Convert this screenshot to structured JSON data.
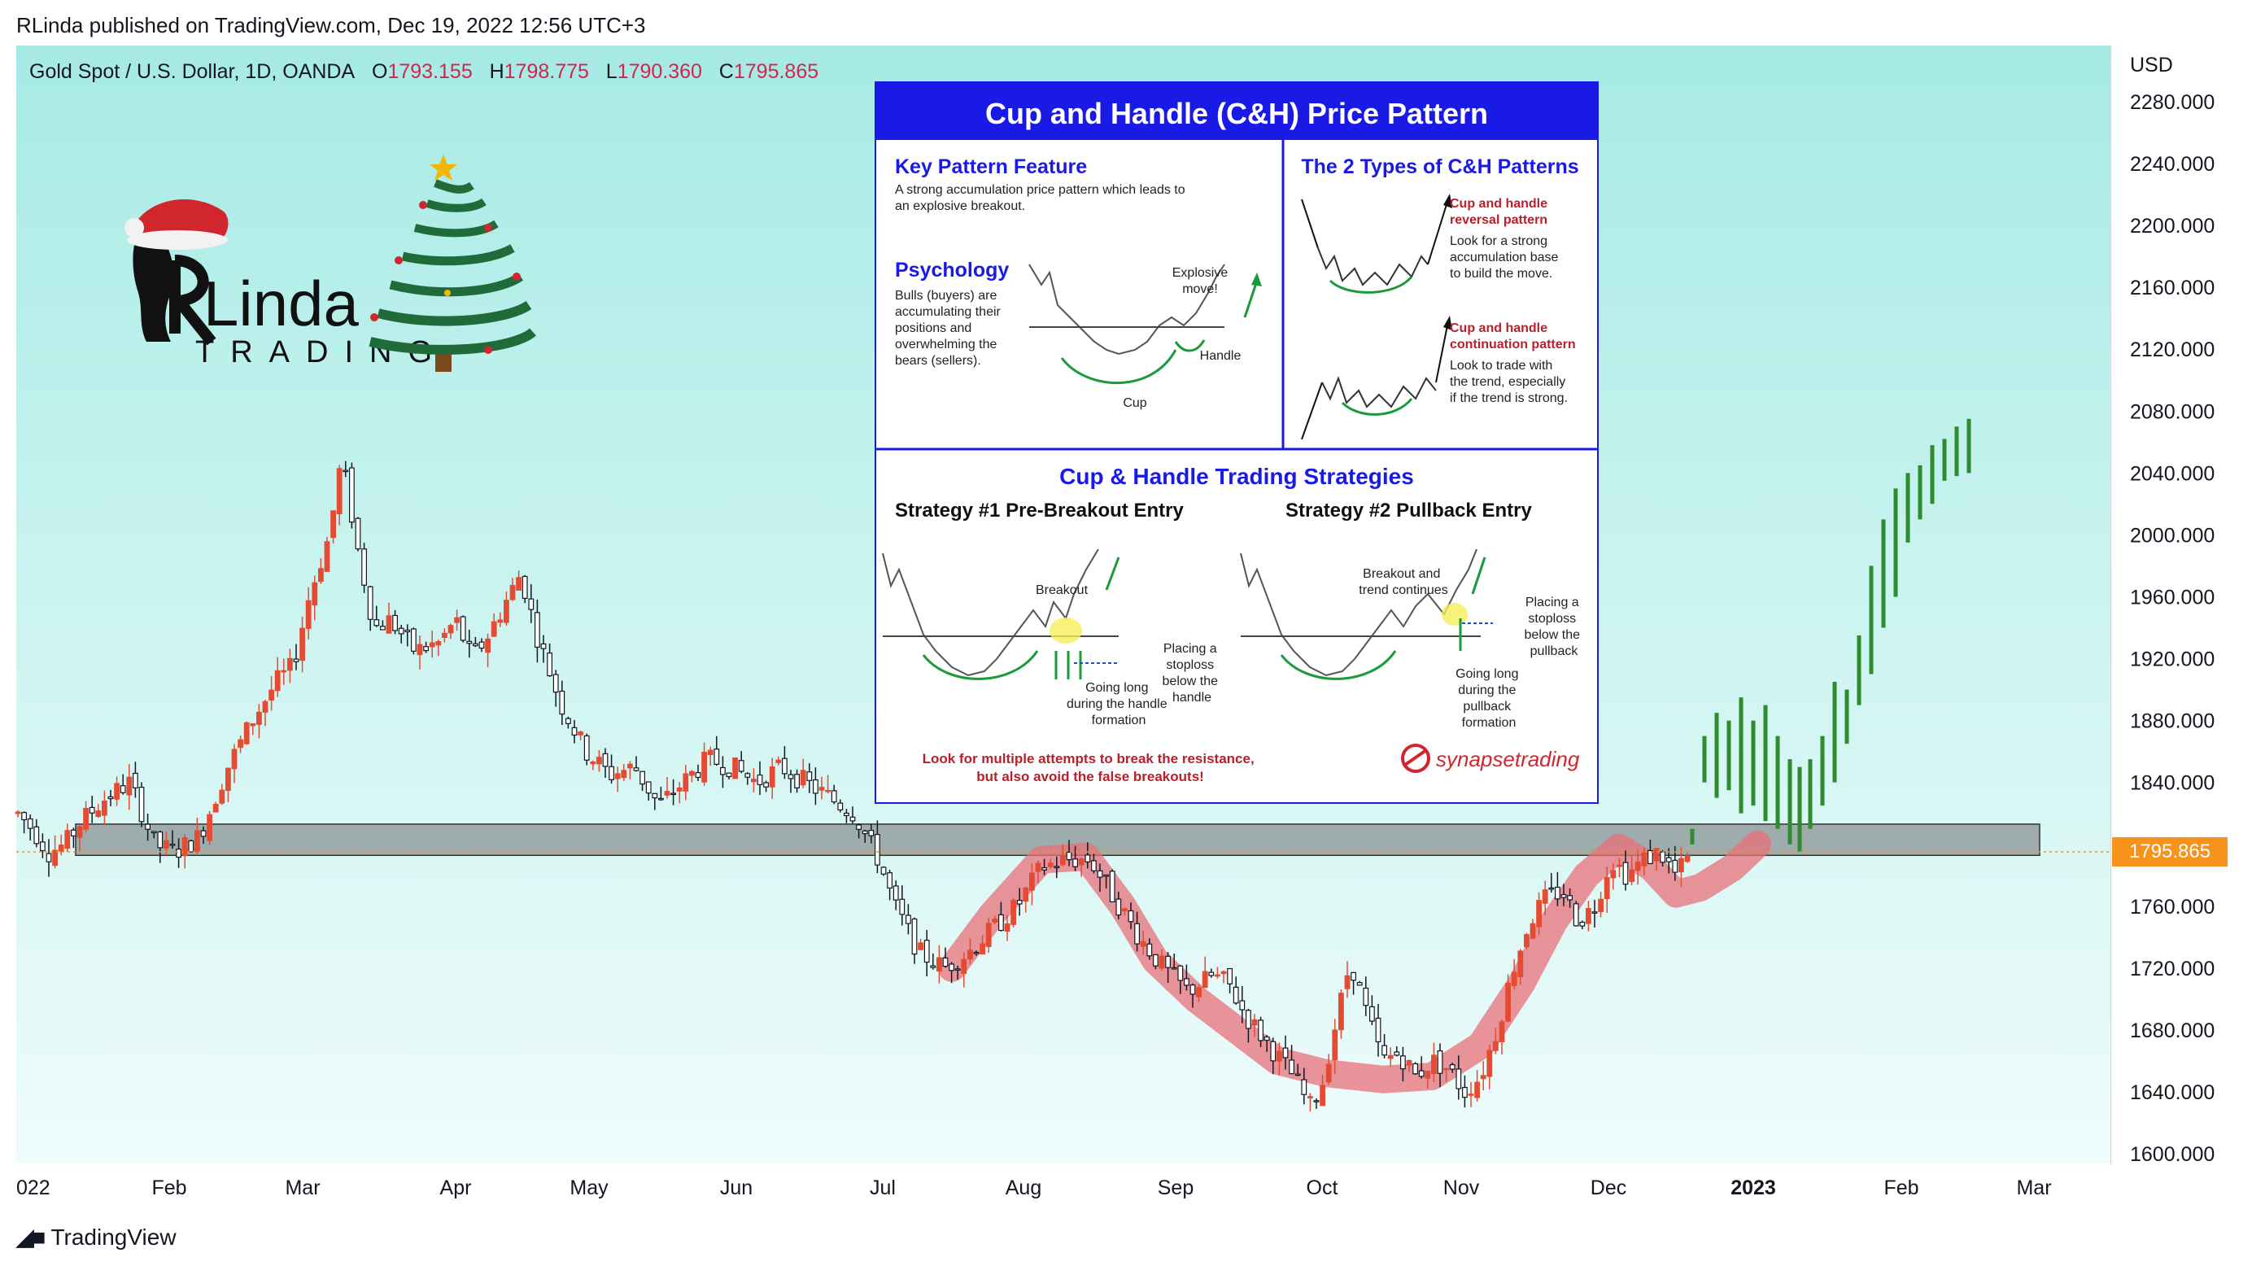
{
  "header": {
    "published": "RLinda published on TradingView.com, Dec 19, 2022 12:56 UTC+3",
    "symbol": "Gold Spot / U.S. Dollar, 1D, OANDA",
    "o_label": "O",
    "o_value": "1793.155",
    "h_label": "H",
    "h_value": "1798.775",
    "l_label": "L",
    "l_value": "1790.360",
    "c_label": "C",
    "c_value": "1795.865"
  },
  "price_scale": {
    "currency": "USD",
    "ticks": [
      "2280.000",
      "2240.000",
      "2200.000",
      "2160.000",
      "2120.000",
      "2080.000",
      "2040.000",
      "2000.000",
      "1960.000",
      "1920.000",
      "1880.000",
      "1840.000",
      "1760.000",
      "1720.000",
      "1680.000",
      "1640.000",
      "1600.000"
    ],
    "current_price": "1795.865"
  },
  "time_scale": {
    "labels": [
      "022",
      "Feb",
      "Mar",
      "Apr",
      "May",
      "Jun",
      "Jul",
      "Aug",
      "Sep",
      "Oct",
      "Nov",
      "Dec",
      "2023",
      "Feb",
      "Mar"
    ]
  },
  "footer": {
    "brand": "TradingView"
  },
  "logo": {
    "name": "Linda",
    "sub": "TRADING"
  },
  "colors": {
    "up_candle": "#e54b32",
    "down_candle": "#131722",
    "projection": "#2e8b2e",
    "cup_highlight": "#e8707a",
    "zone": "#8a9394",
    "price_tag": "#f7931a",
    "panel_blue": "#1a1ae6"
  },
  "infographic": {
    "title": "Cup and Handle (C&H) Price Pattern",
    "key_feature_heading": "Key Pattern Feature",
    "key_feature_text": [
      "A strong accumulation price pattern which leads to",
      "an explosive breakout."
    ],
    "psychology_heading": "Psychology",
    "psychology_text": [
      "Bulls (buyers) are",
      "accumulating their",
      "positions and",
      "overwhelming the",
      "bears (sellers)."
    ],
    "explosive_label": [
      "Explosive",
      "move!"
    ],
    "handle_label": "Handle",
    "cup_label": "Cup",
    "types_heading": "The 2 Types of C&H Patterns",
    "reversal_heading": [
      "Cup and handle",
      "reversal pattern"
    ],
    "reversal_text": [
      "Look for a strong",
      "accumulation base",
      "to build the move."
    ],
    "continuation_heading": [
      "Cup and handle",
      "continuation pattern"
    ],
    "continuation_text": [
      "Look to trade with",
      "the trend, especially",
      "if the trend is strong."
    ],
    "strategies_heading": "Cup & Handle Trading Strategies",
    "strategy1": "Strategy #1 Pre-Breakout Entry",
    "strategy2": "Strategy #2 Pullback Entry",
    "s1_breakout": "Breakout",
    "s1_stoploss": [
      "Placing a",
      "stoploss",
      "below the",
      "handle"
    ],
    "s1_long": [
      "Going long",
      "during the handle",
      "formation"
    ],
    "s2_breakout": [
      "Breakout and",
      "trend continues"
    ],
    "s2_stoploss": [
      "Placing a",
      "stoploss",
      "below the",
      "pullback"
    ],
    "s2_long": [
      "Going long",
      "during the",
      "pullback",
      "formation"
    ],
    "footer_note": [
      "Look for multiple attempts to break the resistance,",
      "but also avoid the false breakouts!"
    ],
    "brand": "synapsetrading"
  },
  "chart_data": {
    "type": "candlestick",
    "symbol": "Gold Spot / U.S. Dollar",
    "interval": "1D",
    "ylim": [
      1600,
      2280
    ],
    "y_ticks": [
      1600,
      1640,
      1680,
      1720,
      1760,
      1840,
      1880,
      1920,
      1960,
      2000,
      2040,
      2080,
      2120,
      2160,
      2200,
      2240,
      2280
    ],
    "x_labels": [
      "022",
      "Feb",
      "Mar",
      "Apr",
      "May",
      "Jun",
      "Jul",
      "Aug",
      "Sep",
      "Oct",
      "Nov",
      "Dec",
      "2023",
      "Feb",
      "Mar"
    ],
    "last": {
      "open": 1793.155,
      "high": 1798.775,
      "low": 1790.36,
      "close": 1795.865
    },
    "resistance_zone": [
      1796,
      1812
    ],
    "monthly_closes_approx": [
      {
        "month": "Jan",
        "close": 1798
      },
      {
        "month": "Feb",
        "close": 1908
      },
      {
        "month": "Mar",
        "close": 1937
      },
      {
        "month": "Apr",
        "close": 1897
      },
      {
        "month": "May",
        "close": 1837
      },
      {
        "month": "Jun",
        "close": 1807
      },
      {
        "month": "Jul",
        "close": 1766
      },
      {
        "month": "Aug",
        "close": 1711
      },
      {
        "month": "Sep",
        "close": 1661
      },
      {
        "month": "Oct",
        "close": 1633
      },
      {
        "month": "Nov",
        "close": 1768
      },
      {
        "month": "Dec",
        "close": 1796
      }
    ],
    "projection": {
      "start": 1796,
      "end": 2060
    }
  }
}
